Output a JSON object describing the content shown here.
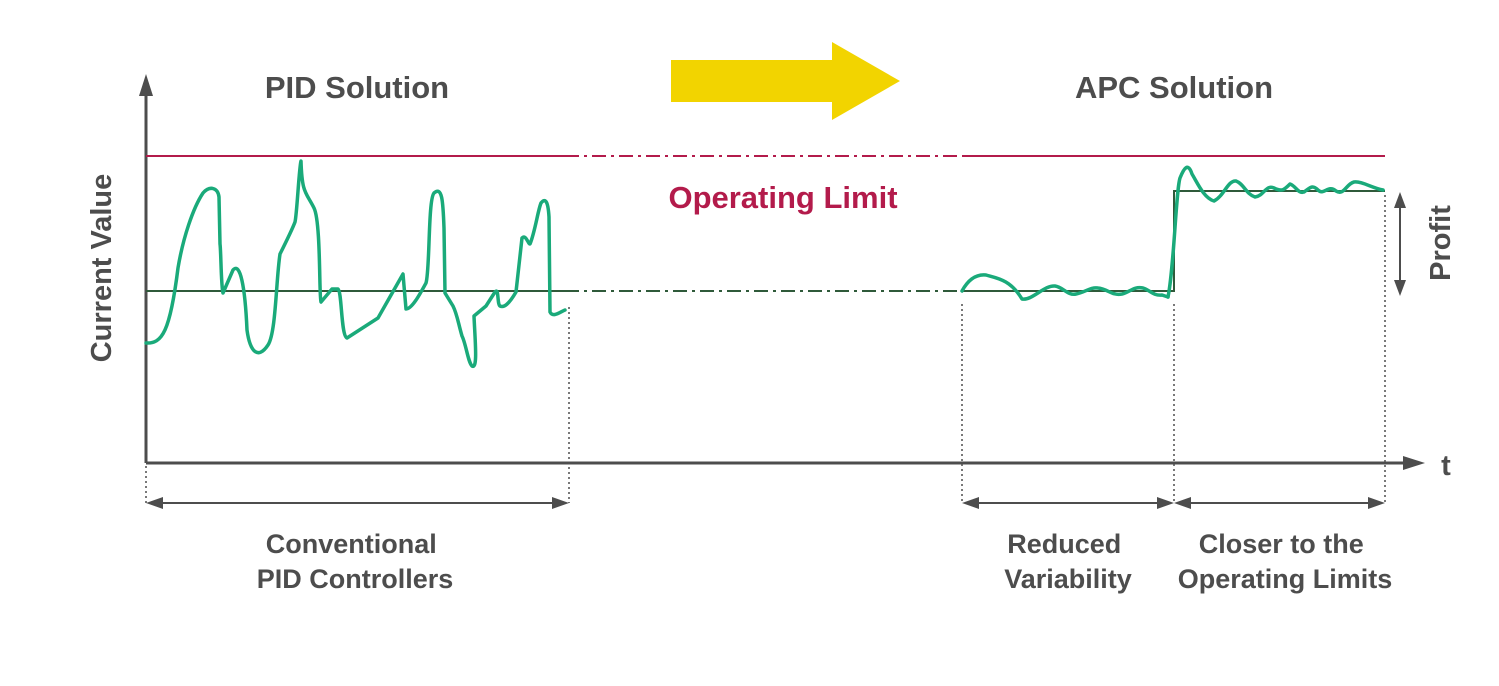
{
  "titles": {
    "left": "PID Solution",
    "right": "APC Solution"
  },
  "operating_limit_label": "Operating Limit",
  "axes": {
    "y_label": "Current Value",
    "x_label": "t"
  },
  "profit_label": "Profit",
  "captions": {
    "conventional": [
      "Conventional",
      "PID Controllers"
    ],
    "reduced": [
      "Reduced",
      "Variability"
    ],
    "closer": [
      "Closer to the",
      "Operating Limits"
    ]
  },
  "colors": {
    "axis": "#4d4d4d",
    "operating_limit": "#b31b4b",
    "signal": "#1aaa7a",
    "setpoint": "#2f5a3a",
    "arrow": "#f2d400",
    "text": "#4d4d4d"
  },
  "icons": {
    "transition_arrow": "right-arrow-icon"
  }
}
